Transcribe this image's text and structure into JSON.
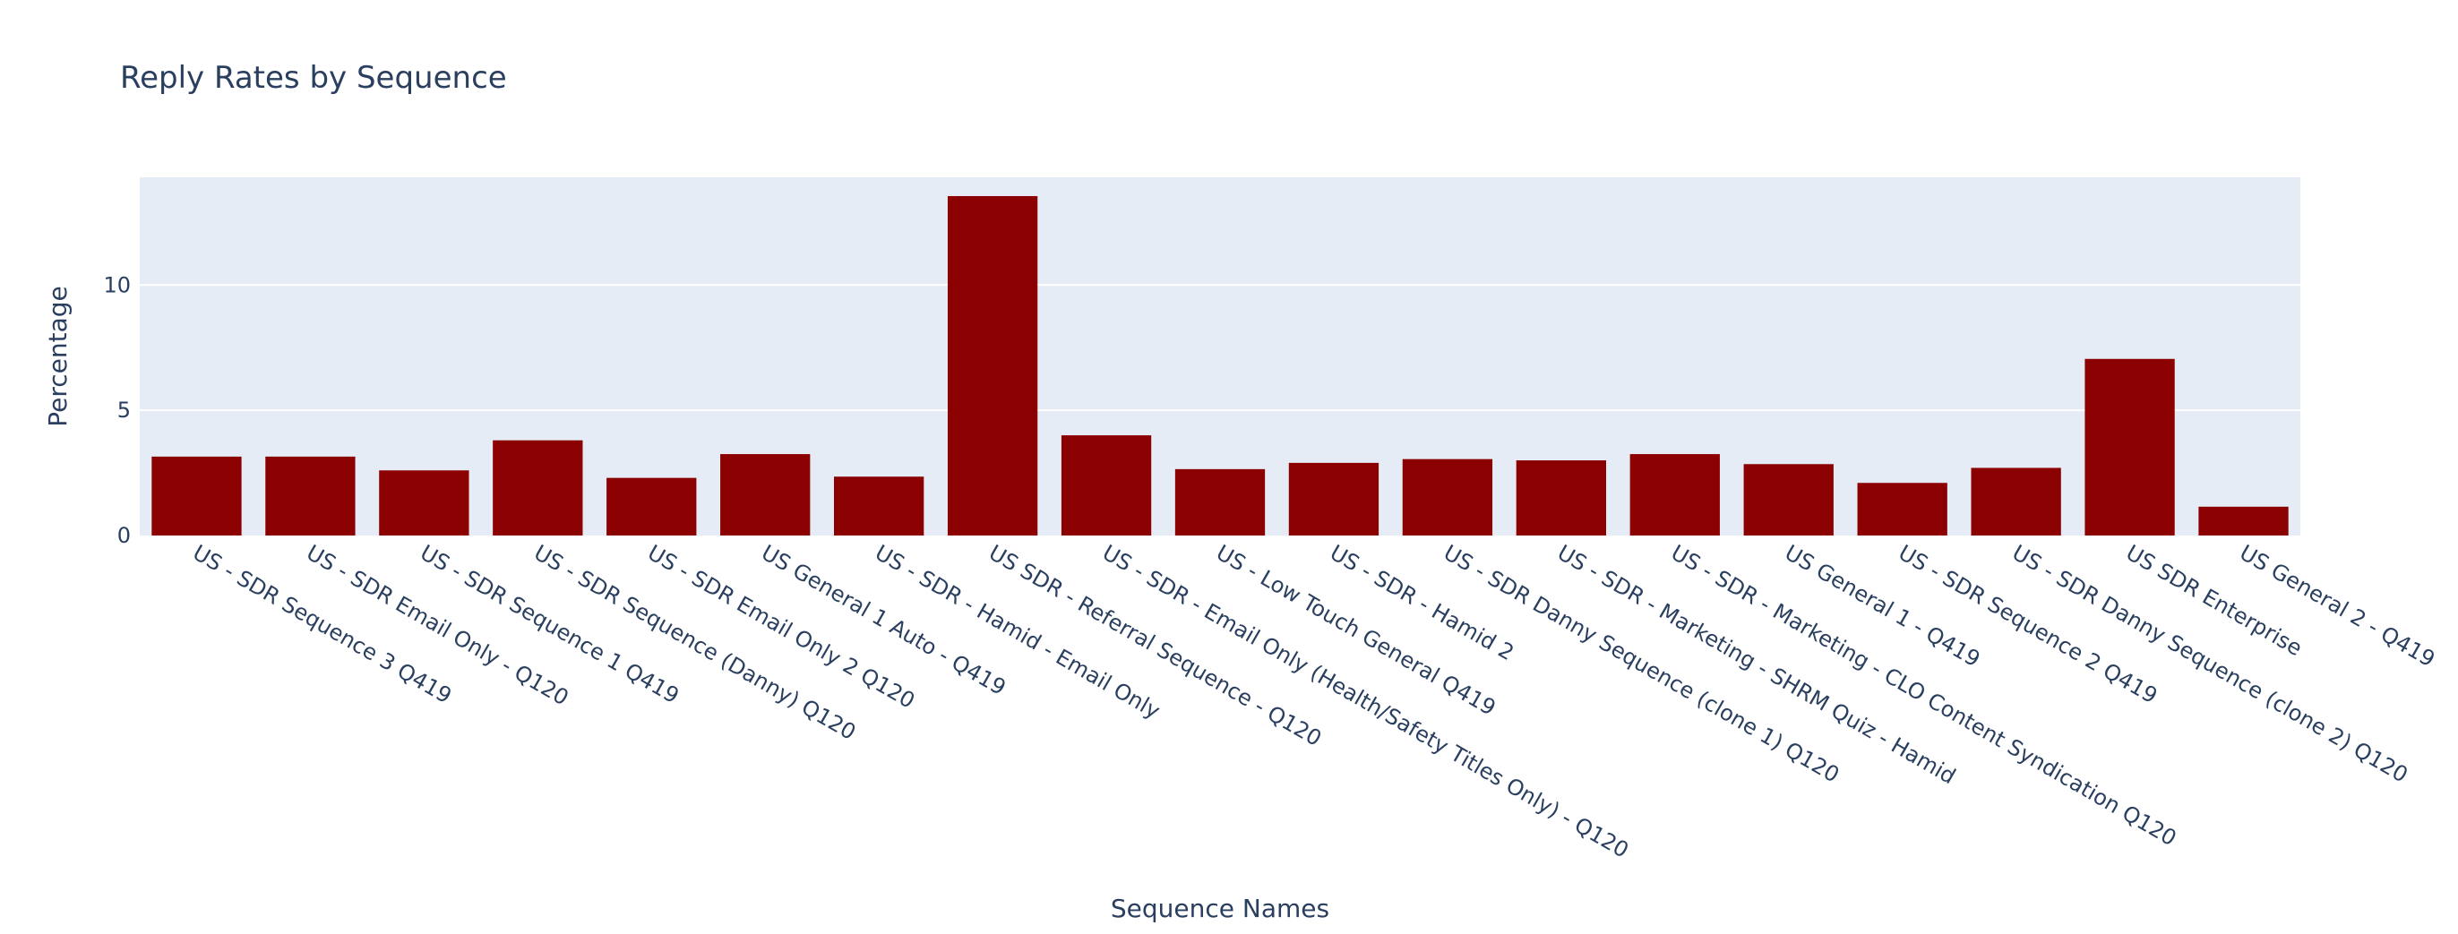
{
  "chart_data": {
    "type": "bar",
    "title": "Reply Rates by Sequence",
    "xlabel": "Sequence Names",
    "ylabel": "Percentage",
    "ylim": [
      0,
      14.3
    ],
    "yticks": [
      0,
      5,
      10
    ],
    "grid": true,
    "bar_color": "#8b0000",
    "plot_background": "#e5ecf6",
    "categories": [
      "US - SDR Sequence 3 Q419",
      "US - SDR Email Only  - Q120",
      "US - SDR Sequence 1 Q419",
      "US - SDR Sequence (Danny) Q120",
      "US - SDR Email Only 2 Q120",
      "US General 1 Auto - Q419",
      "US - SDR - Hamid - Email Only",
      "US SDR -  Referral Sequence - Q120",
      "US - SDR - Email Only (Health/Safety Titles Only) - Q120",
      "US - Low Touch General Q419",
      "US - SDR - Hamid 2",
      "US - SDR Danny Sequence (clone 1) Q120",
      "US - SDR - Marketing - SHRM Quiz - Hamid",
      "US - SDR - Marketing - CLO Content Syndication Q120",
      "US General 1 -  Q419",
      "US - SDR Sequence 2 Q419",
      "US - SDR Danny Sequence (clone 2) Q120",
      "US SDR Enterprise",
      "US General 2 - Q419"
    ],
    "values": [
      3.15,
      3.15,
      2.6,
      3.8,
      2.3,
      3.25,
      2.35,
      13.55,
      4.0,
      2.65,
      2.9,
      3.05,
      3.0,
      3.25,
      2.85,
      2.1,
      2.7,
      7.05,
      1.15
    ]
  }
}
